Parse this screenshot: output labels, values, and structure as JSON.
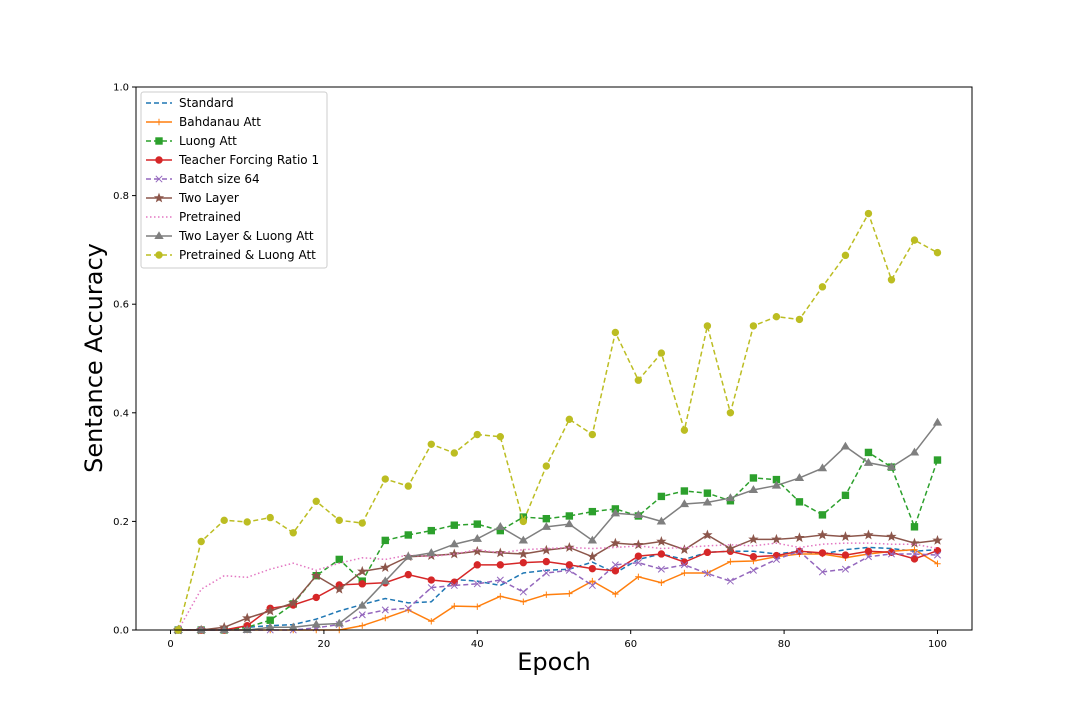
{
  "chart_data": {
    "type": "line",
    "title": "",
    "xlabel": "Epoch",
    "ylabel": "Sentance Accuracy",
    "xlim": [
      -4.5,
      104.5
    ],
    "ylim": [
      0.0,
      1.0
    ],
    "xticks": [
      "0",
      "20",
      "40",
      "60",
      "80",
      "100"
    ],
    "yticks": [
      "0.0",
      "0.2",
      "0.4",
      "0.6",
      "0.8",
      "1.0"
    ],
    "grid": false,
    "legend_position": "top-left",
    "x": [
      1,
      4,
      7,
      10,
      13,
      16,
      19,
      22,
      25,
      28,
      31,
      34,
      37,
      40,
      43,
      46,
      49,
      52,
      55,
      58,
      61,
      64,
      67,
      70,
      73,
      76,
      79,
      82,
      85,
      88,
      91,
      94,
      97,
      100
    ],
    "series": [
      {
        "name": "Standard",
        "color": "#1f77b4",
        "dash": "dashed",
        "marker": "none",
        "values": [
          0.0,
          0.0,
          0.0,
          0.005,
          0.008,
          0.01,
          0.02,
          0.035,
          0.047,
          0.058,
          0.05,
          0.052,
          0.093,
          0.09,
          0.082,
          0.105,
          0.11,
          0.112,
          0.125,
          0.105,
          0.13,
          0.14,
          0.13,
          0.143,
          0.145,
          0.145,
          0.14,
          0.145,
          0.14,
          0.148,
          0.152,
          0.15,
          0.145,
          0.148
        ]
      },
      {
        "name": "Bahdanau Att",
        "color": "#ff7f0e",
        "dash": "solid",
        "marker": "plus",
        "values": [
          0.0,
          0.0,
          0.0,
          0.0,
          0.0,
          0.0,
          0.0,
          0.0,
          0.008,
          0.022,
          0.037,
          0.016,
          0.044,
          0.043,
          0.062,
          0.052,
          0.065,
          0.067,
          0.09,
          0.066,
          0.098,
          0.087,
          0.105,
          0.105,
          0.126,
          0.127,
          0.135,
          0.14,
          0.14,
          0.133,
          0.14,
          0.145,
          0.148,
          0.122
        ]
      },
      {
        "name": "Luong Att",
        "color": "#2ca02c",
        "dash": "dashed",
        "marker": "square",
        "values": [
          0.0,
          0.0,
          0.0,
          0.005,
          0.018,
          0.048,
          0.1,
          0.13,
          0.09,
          0.165,
          0.175,
          0.183,
          0.193,
          0.195,
          0.183,
          0.208,
          0.205,
          0.21,
          0.218,
          0.223,
          0.21,
          0.246,
          0.256,
          0.252,
          0.238,
          0.28,
          0.277,
          0.236,
          0.212,
          0.248,
          0.327,
          0.3,
          0.19,
          0.313
        ]
      },
      {
        "name": "Teacher Forcing Ratio 1",
        "color": "#d62728",
        "dash": "solid",
        "marker": "circle",
        "values": [
          0.0,
          0.0,
          0.0,
          0.008,
          0.04,
          0.046,
          0.06,
          0.083,
          0.085,
          0.087,
          0.102,
          0.092,
          0.088,
          0.12,
          0.12,
          0.124,
          0.126,
          0.12,
          0.113,
          0.109,
          0.136,
          0.14,
          0.125,
          0.143,
          0.145,
          0.135,
          0.137,
          0.145,
          0.142,
          0.138,
          0.145,
          0.143,
          0.131,
          0.146
        ]
      },
      {
        "name": "Batch size 64",
        "color": "#9467bd",
        "dash": "dashed",
        "marker": "x",
        "values": [
          0.0,
          0.0,
          0.0,
          0.0,
          0.0,
          0.0,
          0.004,
          0.01,
          0.028,
          0.037,
          0.04,
          0.078,
          0.082,
          0.085,
          0.092,
          0.07,
          0.105,
          0.11,
          0.082,
          0.12,
          0.124,
          0.112,
          0.12,
          0.104,
          0.09,
          0.11,
          0.13,
          0.145,
          0.107,
          0.112,
          0.135,
          0.14,
          0.14,
          0.138
        ]
      },
      {
        "name": "Two Layer",
        "color": "#8c564b",
        "dash": "solid",
        "marker": "star",
        "values": [
          0.0,
          0.0,
          0.005,
          0.022,
          0.035,
          0.05,
          0.1,
          0.075,
          0.108,
          0.115,
          0.135,
          0.137,
          0.14,
          0.145,
          0.142,
          0.14,
          0.147,
          0.152,
          0.135,
          0.16,
          0.157,
          0.163,
          0.148,
          0.175,
          0.15,
          0.167,
          0.167,
          0.17,
          0.175,
          0.172,
          0.175,
          0.172,
          0.16,
          0.165
        ]
      },
      {
        "name": "Pretrained",
        "color": "#e377c2",
        "dash": "dotted",
        "marker": "none",
        "values": [
          0.0,
          0.075,
          0.1,
          0.097,
          0.112,
          0.123,
          0.11,
          0.123,
          0.133,
          0.13,
          0.138,
          0.135,
          0.14,
          0.148,
          0.142,
          0.148,
          0.15,
          0.152,
          0.15,
          0.152,
          0.155,
          0.15,
          0.152,
          0.155,
          0.157,
          0.155,
          0.16,
          0.152,
          0.158,
          0.16,
          0.16,
          0.158,
          0.158,
          0.15
        ]
      },
      {
        "name": "Two Layer & Luong Att",
        "color": "#7f7f7f",
        "dash": "solid",
        "marker": "triangle",
        "values": [
          0.0,
          0.0,
          0.0,
          0.0,
          0.005,
          0.005,
          0.01,
          0.012,
          0.045,
          0.09,
          0.135,
          0.142,
          0.158,
          0.168,
          0.19,
          0.165,
          0.19,
          0.195,
          0.165,
          0.215,
          0.212,
          0.2,
          0.232,
          0.235,
          0.243,
          0.258,
          0.266,
          0.28,
          0.298,
          0.338,
          0.308,
          0.3,
          0.327,
          0.382
        ]
      },
      {
        "name": "Pretrained & Luong Att",
        "color": "#bcbd22",
        "dash": "dashed",
        "marker": "circle",
        "values": [
          0.0,
          0.163,
          0.202,
          0.199,
          0.207,
          0.179,
          0.237,
          0.202,
          0.197,
          0.278,
          0.265,
          0.342,
          0.326,
          0.36,
          0.356,
          0.2,
          0.302,
          0.388,
          0.36,
          0.548,
          0.46,
          0.51,
          0.368,
          0.56,
          0.4,
          0.56,
          0.577,
          0.572,
          0.632,
          0.69,
          0.767,
          0.645,
          0.718,
          0.695
        ]
      }
    ]
  }
}
